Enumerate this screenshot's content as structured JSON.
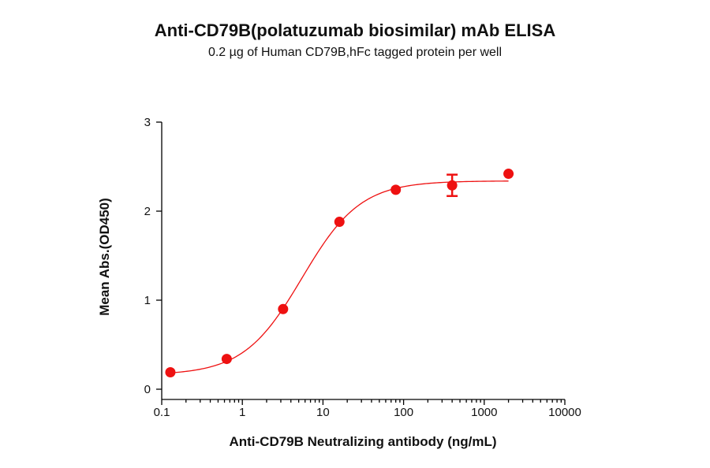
{
  "chart_data": {
    "type": "scatter",
    "title": "Anti-CD79B(polatuzumab biosimilar) mAb ELISA",
    "subtitle": "0.2 µg of Human CD79B,hFc tagged protein per well",
    "xlabel": "Anti-CD79B Neutralizing antibody (ng/mL)",
    "ylabel": "Mean Abs.(OD450)",
    "x_scale": "log",
    "xlim": [
      0.1,
      10000
    ],
    "ylim": [
      0,
      3
    ],
    "x_ticks": [
      "0.1",
      "1",
      "10",
      "100",
      "1000",
      "10000"
    ],
    "y_ticks": [
      "0",
      "1",
      "2",
      "3"
    ],
    "grid": false,
    "color": "#ee1111",
    "points": [
      {
        "x": 0.128,
        "y": 0.19,
        "err": 0.01
      },
      {
        "x": 0.64,
        "y": 0.34,
        "err": 0.01
      },
      {
        "x": 3.2,
        "y": 0.9,
        "err": 0.01
      },
      {
        "x": 16,
        "y": 1.88,
        "err": 0.01
      },
      {
        "x": 80,
        "y": 2.24,
        "err": 0.01
      },
      {
        "x": 400,
        "y": 2.29,
        "err": 0.12
      },
      {
        "x": 2000,
        "y": 2.42,
        "err": 0.01
      }
    ],
    "fit_curve": {
      "bottom": 0.16,
      "top": 2.34,
      "ec50": 5.5,
      "hill": 1.2
    }
  }
}
